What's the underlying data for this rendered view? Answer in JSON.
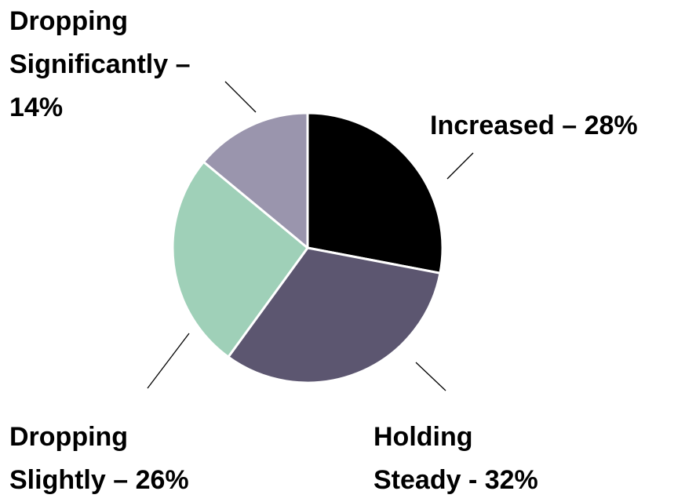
{
  "chart_data": {
    "type": "pie",
    "values": [
      28,
      32,
      26,
      14
    ],
    "value_labels": [
      "Increased – 28%",
      "Holding Steady - 32%",
      "Dropping Slightly – 26%",
      "Dropping Significantly – 14%"
    ],
    "colors": [
      "#000000",
      "#5c5670",
      "#9fd0b8",
      "#9a95ad"
    ]
  }
}
